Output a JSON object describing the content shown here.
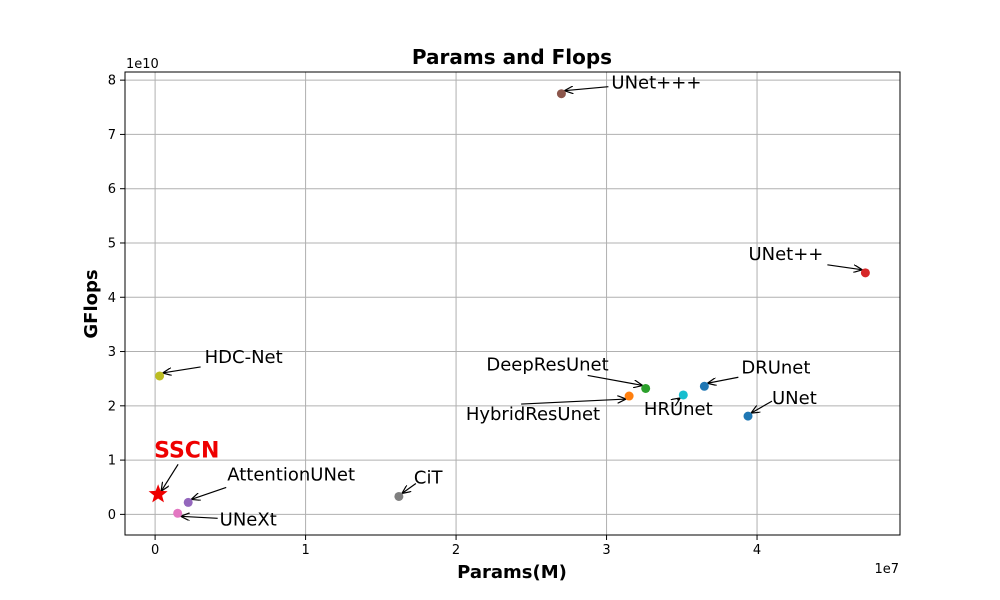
{
  "chart_data": {
    "type": "scatter",
    "title": "Params and Flops",
    "xlabel": "Params(M)",
    "ylabel": "GFlops",
    "x_exponent_label": "1e7",
    "y_exponent_label": "1e10",
    "xlim": [
      -0.2,
      4.95
    ],
    "ylim": [
      -0.38,
      8.15
    ],
    "xticks": [
      0,
      1,
      2,
      3,
      4
    ],
    "yticks": [
      0,
      1,
      2,
      3,
      4,
      5,
      6,
      7,
      8
    ],
    "grid": true,
    "points": [
      {
        "label": "UNet+++",
        "x": 2.7,
        "y": 7.75,
        "color": "#8c564b",
        "marker": "circle"
      },
      {
        "label": "UNet++",
        "x": 4.72,
        "y": 4.45,
        "color": "#d62728",
        "marker": "circle"
      },
      {
        "label": "HDC-Net",
        "x": 0.03,
        "y": 2.55,
        "color": "#bcbd22",
        "marker": "circle"
      },
      {
        "label": "DeepResUnet",
        "x": 3.26,
        "y": 2.32,
        "color": "#2ca02c",
        "marker": "circle"
      },
      {
        "label": "DRUnet",
        "x": 3.65,
        "y": 2.36,
        "color": "#1f77b4",
        "marker": "circle"
      },
      {
        "label": "HybridResUnet",
        "x": 3.15,
        "y": 2.18,
        "color": "#ff7f0e",
        "marker": "circle"
      },
      {
        "label": "HRUnet",
        "x": 3.51,
        "y": 2.2,
        "color": "#17becf",
        "marker": "circle"
      },
      {
        "label": "UNet",
        "x": 3.94,
        "y": 1.81,
        "color": "#1f77b4",
        "marker": "circle"
      },
      {
        "label": "SSCN",
        "x": 0.02,
        "y": 0.37,
        "color": "#ee0000",
        "marker": "star",
        "highlight": true
      },
      {
        "label": "AttentionUNet",
        "x": 0.22,
        "y": 0.22,
        "color": "#9467bd",
        "marker": "circle"
      },
      {
        "label": "CiT",
        "x": 1.62,
        "y": 0.33,
        "color": "#7f7f7f",
        "marker": "circle"
      },
      {
        "label": "UNeXt",
        "x": 0.15,
        "y": 0.02,
        "color": "#e377c2",
        "marker": "circle"
      }
    ]
  }
}
